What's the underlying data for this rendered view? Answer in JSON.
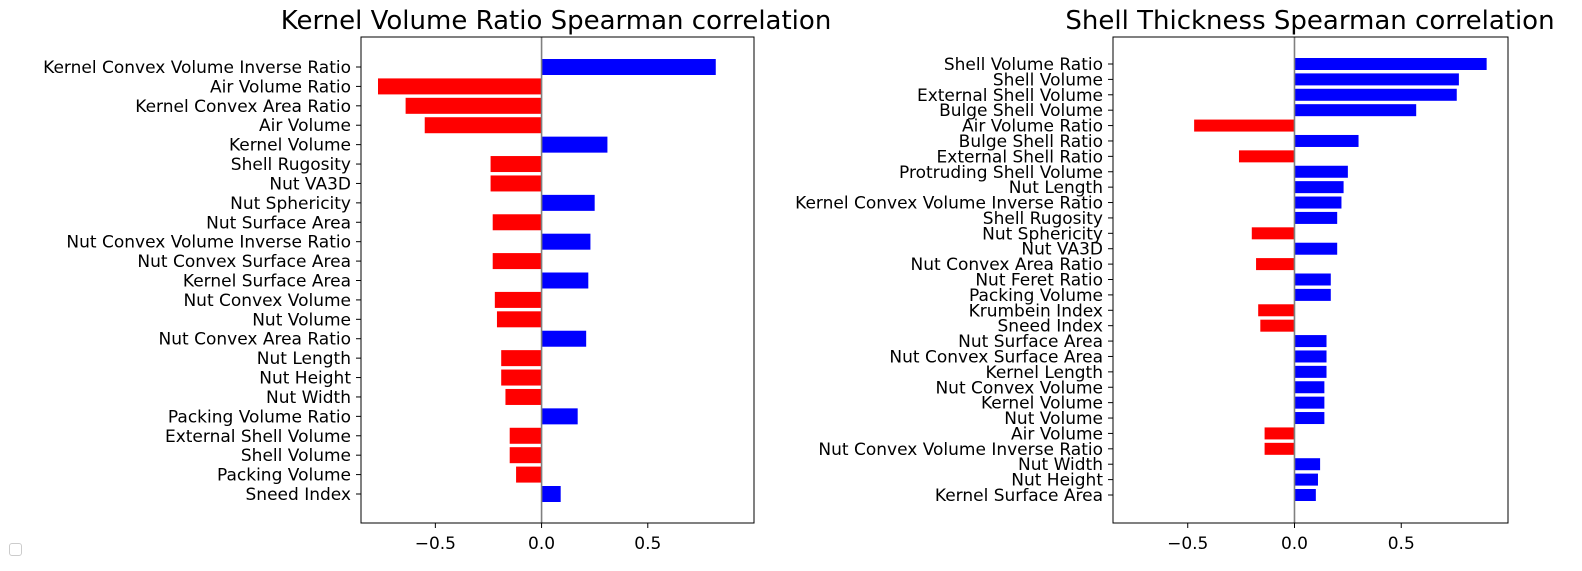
{
  "chart_data": [
    {
      "type": "bar",
      "orientation": "horizontal",
      "title": "Kernel Volume Ratio Spearman correlation",
      "categories": [
        "Kernel Convex Volume Inverse Ratio",
        "Air Volume Ratio",
        "Kernel Convex Area Ratio",
        "Air Volume",
        "Kernel Volume",
        "Shell Rugosity",
        "Nut VA3D",
        "Nut Sphericity",
        "Nut Surface Area",
        "Nut Convex Volume Inverse Ratio",
        "Nut Convex Surface Area",
        "Kernel Surface Area",
        "Nut Convex Volume",
        "Nut Volume",
        "Nut Convex Area Ratio",
        "Nut Length",
        "Nut Height",
        "Nut Width",
        "Packing Volume Ratio",
        "External Shell Volume",
        "Shell Volume",
        "Packing Volume",
        "Sneed Index"
      ],
      "values": [
        0.82,
        -0.77,
        -0.64,
        -0.55,
        0.31,
        -0.24,
        -0.24,
        0.25,
        -0.23,
        0.23,
        -0.23,
        0.22,
        -0.22,
        -0.21,
        0.21,
        -0.19,
        -0.19,
        -0.17,
        0.17,
        -0.15,
        -0.15,
        -0.12,
        0.09
      ],
      "positive_color": "#0000ff",
      "negative_color": "#ff0000",
      "xlim": [
        -0.85,
        1.0
      ],
      "xticks": [
        "−0.5",
        "0.0",
        "0.5"
      ],
      "xtick_values": [
        -0.5,
        0.0,
        0.5
      ],
      "zero_line_color": "#808080",
      "grid": false
    },
    {
      "type": "bar",
      "orientation": "horizontal",
      "title": "Shell Thickness Spearman correlation",
      "categories": [
        "Shell Volume Ratio",
        "Shell Volume",
        "External Shell Volume",
        "Bulge Shell Volume",
        "Air Volume Ratio",
        "Bulge Shell Ratio",
        "External Shell Ratio",
        "Protruding Shell Volume",
        "Nut Length",
        "Kernel Convex Volume Inverse Ratio",
        "Shell Rugosity",
        "Nut Sphericity",
        "Nut VA3D",
        "Nut Convex Area Ratio",
        "Nut Feret Ratio",
        "Packing Volume",
        "Krumbein Index",
        "Sneed Index",
        "Nut Surface Area",
        "Nut Convex Surface Area",
        "Kernel Length",
        "Nut Convex Volume",
        "Kernel Volume",
        "Nut Volume",
        "Air Volume",
        "Nut Convex Volume Inverse Ratio",
        "Nut Width",
        "Nut Height",
        "Kernel Surface Area"
      ],
      "values": [
        0.9,
        0.77,
        0.76,
        0.57,
        -0.47,
        0.3,
        -0.26,
        0.25,
        0.23,
        0.22,
        0.2,
        -0.2,
        0.2,
        -0.18,
        0.17,
        0.17,
        -0.17,
        -0.16,
        0.15,
        0.15,
        0.15,
        0.14,
        0.14,
        0.14,
        -0.14,
        -0.14,
        0.12,
        0.11,
        0.1
      ],
      "positive_color": "#0000ff",
      "negative_color": "#ff0000",
      "xlim": [
        -0.85,
        1.0
      ],
      "xticks": [
        "−0.5",
        "0.0",
        "0.5"
      ],
      "xtick_values": [
        -0.5,
        0.0,
        0.5
      ],
      "zero_line_color": "#808080",
      "grid": false
    }
  ]
}
